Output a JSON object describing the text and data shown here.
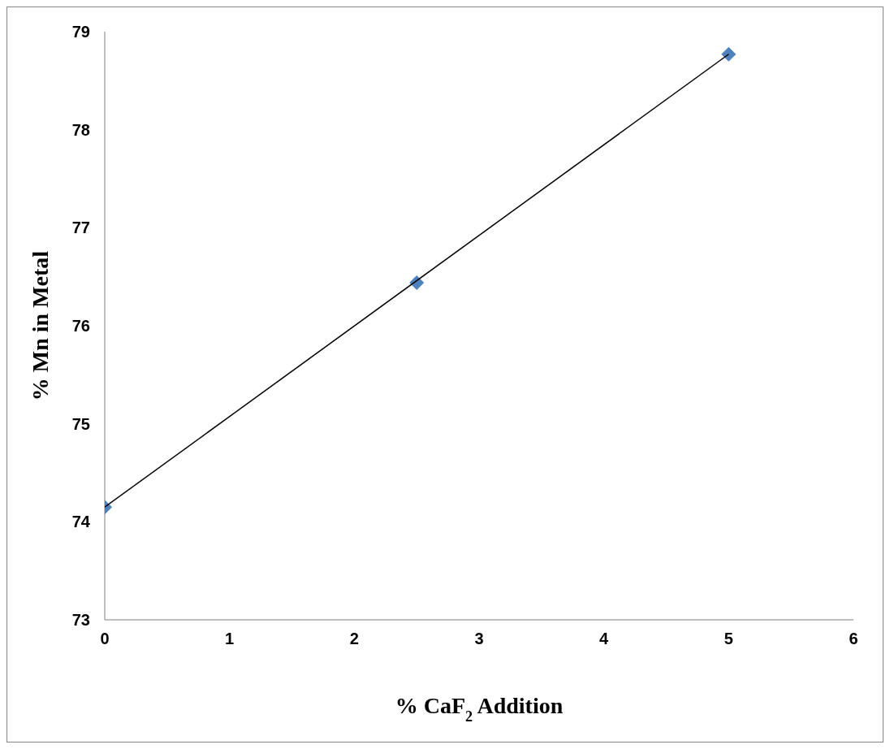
{
  "chart_data": {
    "type": "scatter",
    "xlabel": "% CaF$_{2}$ Addition",
    "ylabel": "% Mn in Metal",
    "xlim": [
      0,
      6
    ],
    "xticks": [
      0,
      1,
      2,
      3,
      4,
      5,
      6
    ],
    "ylim": [
      73,
      79
    ],
    "yticks": [
      73,
      74,
      75,
      76,
      77,
      78,
      79
    ],
    "grid": false,
    "marker": "diamond",
    "series": [
      {
        "color": "#4f81bd",
        "x": [
          0,
          2.5,
          5
        ],
        "values": [
          74.15,
          76.44,
          78.77
        ]
      },
      {
        "type": "line",
        "color": "#000000",
        "marker": "none",
        "x": [
          0,
          5
        ],
        "values": [
          74.15,
          78.77
        ]
      }
    ]
  }
}
